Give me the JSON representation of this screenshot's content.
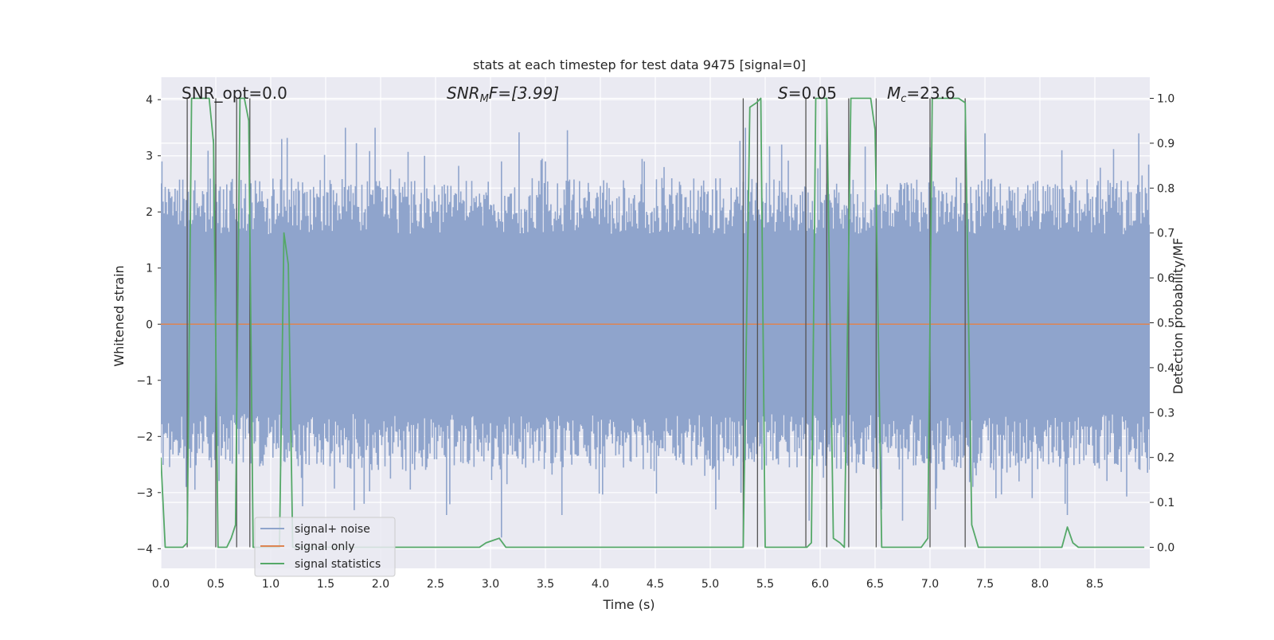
{
  "chart_data": {
    "type": "line",
    "title": "stats at each timestep for test data 9475 [signal=0]",
    "xlabel": "Time (s)",
    "ylabel_left": "Whitened strain",
    "ylabel_right": "Detection probability/MF",
    "xlim": [
      0.0,
      9.0
    ],
    "ylim_left": [
      -4.35,
      4.4
    ],
    "ylim_right": [
      -0.047,
      1.047
    ],
    "grid": true,
    "legend_placement": "lower-left",
    "x_ticks": [
      "0.0",
      "0.5",
      "1.0",
      "1.5",
      "2.0",
      "2.5",
      "3.0",
      "3.5",
      "4.0",
      "4.5",
      "5.0",
      "5.5",
      "6.0",
      "6.5",
      "7.0",
      "7.5",
      "8.0",
      "8.5"
    ],
    "x_tick_values": [
      0.0,
      0.5,
      1.0,
      1.5,
      2.0,
      2.5,
      3.0,
      3.5,
      4.0,
      4.5,
      5.0,
      5.5,
      6.0,
      6.5,
      7.0,
      7.5,
      8.0,
      8.5
    ],
    "y_left_ticks": [
      "4",
      "3",
      "2",
      "1",
      "0",
      "−1",
      "−2",
      "−3",
      "−4"
    ],
    "y_left_tick_values": [
      4,
      3,
      2,
      1,
      0,
      -1,
      -2,
      -3,
      -4
    ],
    "y_right_ticks": [
      "1.0",
      "0.9",
      "0.8",
      "0.7",
      "0.6",
      "0.5",
      "0.4",
      "0.3",
      "0.2",
      "0.1",
      "0.0"
    ],
    "y_right_tick_values": [
      1.0,
      0.9,
      0.8,
      0.7,
      0.6,
      0.5,
      0.4,
      0.3,
      0.2,
      0.1,
      0.0
    ],
    "annotations": {
      "snr_opt": "SNR_opt=0.0",
      "snr_mf_prefix": "SNR",
      "snr_mf_sub": "M",
      "snr_mf_suffix": "F=[3.99]",
      "s_prefix": "S",
      "s_suffix": "=0.05",
      "mc_prefix": "M",
      "mc_sub": "c",
      "mc_suffix": "=23.6"
    },
    "series": [
      {
        "name": "signal+ noise",
        "color": "#8fa4cc",
        "axis": "left",
        "sample_rate_hz": 100,
        "bulk_amplitude_range": [
          -1.6,
          1.6
        ],
        "typical_peak_range": [
          1.9,
          2.6
        ],
        "max_peak": 3.5,
        "min_trough": -3.95,
        "notable_peaks": [
          [
            0.01,
            2.9
          ],
          [
            0.48,
            3.3
          ],
          [
            1.1,
            3.3
          ],
          [
            1.68,
            3.5
          ],
          [
            1.95,
            3.5
          ],
          [
            2.4,
            3.0
          ],
          [
            3.1,
            2.9
          ],
          [
            3.5,
            2.9
          ],
          [
            4.4,
            2.9
          ],
          [
            5.32,
            3.5
          ],
          [
            5.65,
            3.2
          ],
          [
            6.0,
            3.2
          ],
          [
            7.5,
            3.4
          ],
          [
            8.2,
            3.1
          ],
          [
            8.9,
            3.4
          ]
        ],
        "notable_troughs": [
          [
            0.23,
            -2.9
          ],
          [
            0.31,
            -2.95
          ],
          [
            1.85,
            -3.2
          ],
          [
            2.6,
            -3.4
          ],
          [
            3.1,
            -3.8
          ],
          [
            3.65,
            -3.4
          ],
          [
            5.05,
            -3.3
          ],
          [
            5.9,
            -3.5
          ],
          [
            6.56,
            -3.3
          ],
          [
            6.75,
            -3.5
          ],
          [
            7.05,
            -3.3
          ],
          [
            7.6,
            -3.1
          ],
          [
            8.25,
            -3.4
          ]
        ]
      },
      {
        "name": "signal only",
        "color": "#dd8452",
        "axis": "left",
        "x": [
          0.0,
          9.0
        ],
        "values": [
          0.0,
          0.0
        ]
      },
      {
        "name": "signal statistics",
        "color": "#55a868",
        "axis": "right",
        "x": [
          0.0,
          0.04,
          0.08,
          0.12,
          0.16,
          0.2,
          0.24,
          0.28,
          0.32,
          0.36,
          0.4,
          0.44,
          0.48,
          0.52,
          0.56,
          0.6,
          0.64,
          0.68,
          0.72,
          0.76,
          0.8,
          0.84,
          0.88,
          0.92,
          0.96,
          1.0,
          1.04,
          1.08,
          1.12,
          1.16,
          1.2,
          1.24,
          1.28,
          2.9,
          2.96,
          3.02,
          3.08,
          3.14,
          3.2,
          5.24,
          5.3,
          5.36,
          5.42,
          5.46,
          5.5,
          5.54,
          5.84,
          5.88,
          5.92,
          5.96,
          6.0,
          6.06,
          6.12,
          6.18,
          6.22,
          6.28,
          6.34,
          6.4,
          6.46,
          6.5,
          6.56,
          6.62,
          6.68,
          6.74,
          6.8,
          6.86,
          6.92,
          6.98,
          7.02,
          7.08,
          7.14,
          7.2,
          7.26,
          7.32,
          7.38,
          7.44,
          7.5,
          7.56,
          7.62,
          7.7,
          8.0,
          8.15,
          8.2,
          8.25,
          8.3,
          8.35,
          8.45,
          8.95
        ],
        "values": [
          0.2,
          0.0,
          0.0,
          0.0,
          0.0,
          0.0,
          0.01,
          1.0,
          1.0,
          1.0,
          1.0,
          1.0,
          0.9,
          0.0,
          0.0,
          0.0,
          0.02,
          0.05,
          1.0,
          1.0,
          0.95,
          0.0,
          0.0,
          0.0,
          0.0,
          0.0,
          0.0,
          0.0,
          0.7,
          0.63,
          0.0,
          0.0,
          0.0,
          0.0,
          0.01,
          0.015,
          0.02,
          0.0,
          0.0,
          0.0,
          0.0,
          0.98,
          0.99,
          1.0,
          0.0,
          0.0,
          0.0,
          0.0,
          0.01,
          1.0,
          1.0,
          1.0,
          0.02,
          0.01,
          0.0,
          1.0,
          1.0,
          1.0,
          1.0,
          0.93,
          0.0,
          0.0,
          0.0,
          0.0,
          0.0,
          0.0,
          0.0,
          0.02,
          1.0,
          1.0,
          1.0,
          1.0,
          1.0,
          0.99,
          0.05,
          0.0,
          0.0,
          0.0,
          0.0,
          0.0,
          0.0,
          0.0,
          0.0,
          0.045,
          0.01,
          0.0,
          0.0,
          0.0
        ]
      }
    ],
    "marker_lines": [
      0.24,
      0.5,
      0.69,
      0.81,
      5.3,
      5.43,
      5.87,
      6.06,
      6.26,
      6.51,
      7.0,
      7.32
    ]
  }
}
